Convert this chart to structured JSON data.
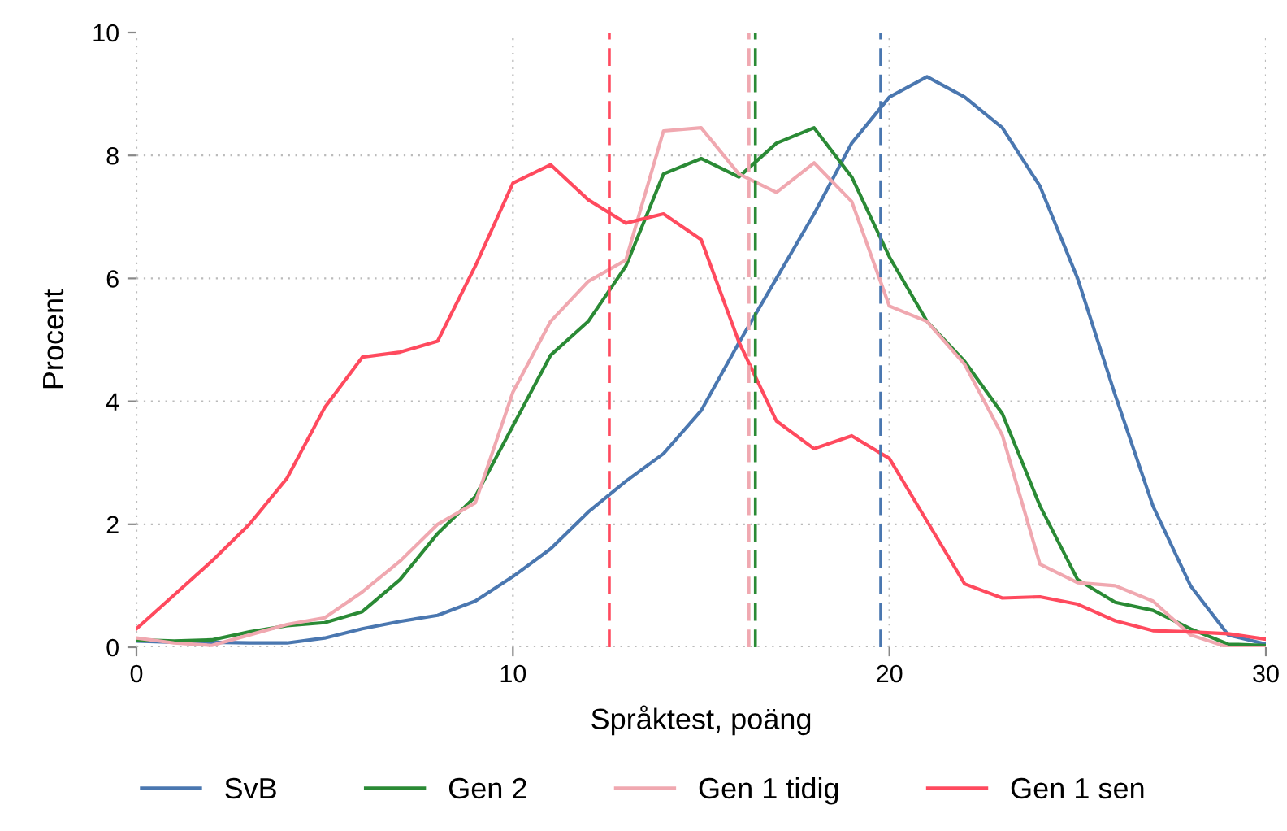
{
  "chart_data": {
    "type": "line",
    "xlabel": "Språktest, poäng",
    "ylabel": "Procent",
    "x": [
      0,
      1,
      2,
      3,
      4,
      5,
      6,
      7,
      8,
      9,
      10,
      11,
      12,
      13,
      14,
      15,
      16,
      17,
      18,
      19,
      20,
      21,
      22,
      23,
      24,
      25,
      26,
      27,
      28,
      29,
      30
    ],
    "series": [
      {
        "name": "SvB",
        "color": "#4a77b0",
        "values": [
          0.1,
          0.08,
          0.08,
          0.07,
          0.07,
          0.15,
          0.3,
          0.42,
          0.52,
          0.75,
          1.15,
          1.6,
          2.2,
          2.7,
          3.15,
          3.85,
          4.95,
          6.0,
          7.05,
          8.2,
          8.95,
          9.28,
          8.95,
          8.45,
          7.5,
          6.0,
          4.1,
          2.3,
          1.0,
          0.2,
          0.05
        ]
      },
      {
        "name": "Gen 2",
        "color": "#2a8a35",
        "values": [
          0.12,
          0.1,
          0.12,
          0.25,
          0.35,
          0.4,
          0.58,
          1.1,
          1.85,
          2.45,
          3.6,
          4.75,
          5.3,
          6.2,
          7.7,
          7.95,
          7.65,
          8.2,
          8.45,
          7.65,
          6.35,
          5.3,
          4.65,
          3.8,
          2.3,
          1.1,
          0.73,
          0.6,
          0.3,
          0.05,
          0.03
        ]
      },
      {
        "name": "Gen 1 tidig",
        "color": "#f0a8b0",
        "values": [
          0.15,
          0.07,
          0.03,
          0.2,
          0.37,
          0.48,
          0.9,
          1.4,
          2.0,
          2.35,
          4.15,
          5.3,
          5.95,
          6.3,
          8.4,
          8.45,
          7.7,
          7.4,
          7.88,
          7.25,
          5.55,
          5.3,
          4.6,
          3.45,
          1.35,
          1.05,
          1.0,
          0.75,
          0.2,
          0.0,
          0.0
        ]
      },
      {
        "name": "Gen 1 sen",
        "color": "#ff4a5e",
        "values": [
          0.3,
          0.85,
          1.4,
          2.0,
          2.75,
          3.9,
          4.72,
          4.8,
          4.98,
          6.2,
          7.55,
          7.85,
          7.28,
          6.9,
          7.05,
          6.63,
          4.97,
          3.68,
          3.23,
          3.44,
          3.07,
          2.05,
          1.03,
          0.8,
          0.82,
          0.7,
          0.43,
          0.27,
          0.25,
          0.22,
          0.13
        ]
      }
    ],
    "ref_lines": [
      {
        "axis": "x",
        "value": 19.77,
        "color": "#4a77b0",
        "line_style": "dashed"
      },
      {
        "axis": "x",
        "value": 16.44,
        "color": "#2a8a35",
        "line_style": "dashed"
      },
      {
        "axis": "x",
        "value": 16.27,
        "color": "#f0a8b0",
        "line_style": "dashed"
      },
      {
        "axis": "x",
        "value": 12.56,
        "color": "#ff4a5e",
        "line_style": "dashed"
      }
    ],
    "xlim": [
      0,
      30
    ],
    "xticks": [
      0,
      10,
      20,
      30
    ],
    "ylim": [
      0,
      10
    ],
    "yticks": [
      0,
      2,
      4,
      6,
      8,
      10
    ],
    "grid": true,
    "legend": "bottom",
    "marker": "none",
    "line_style": "solid"
  }
}
